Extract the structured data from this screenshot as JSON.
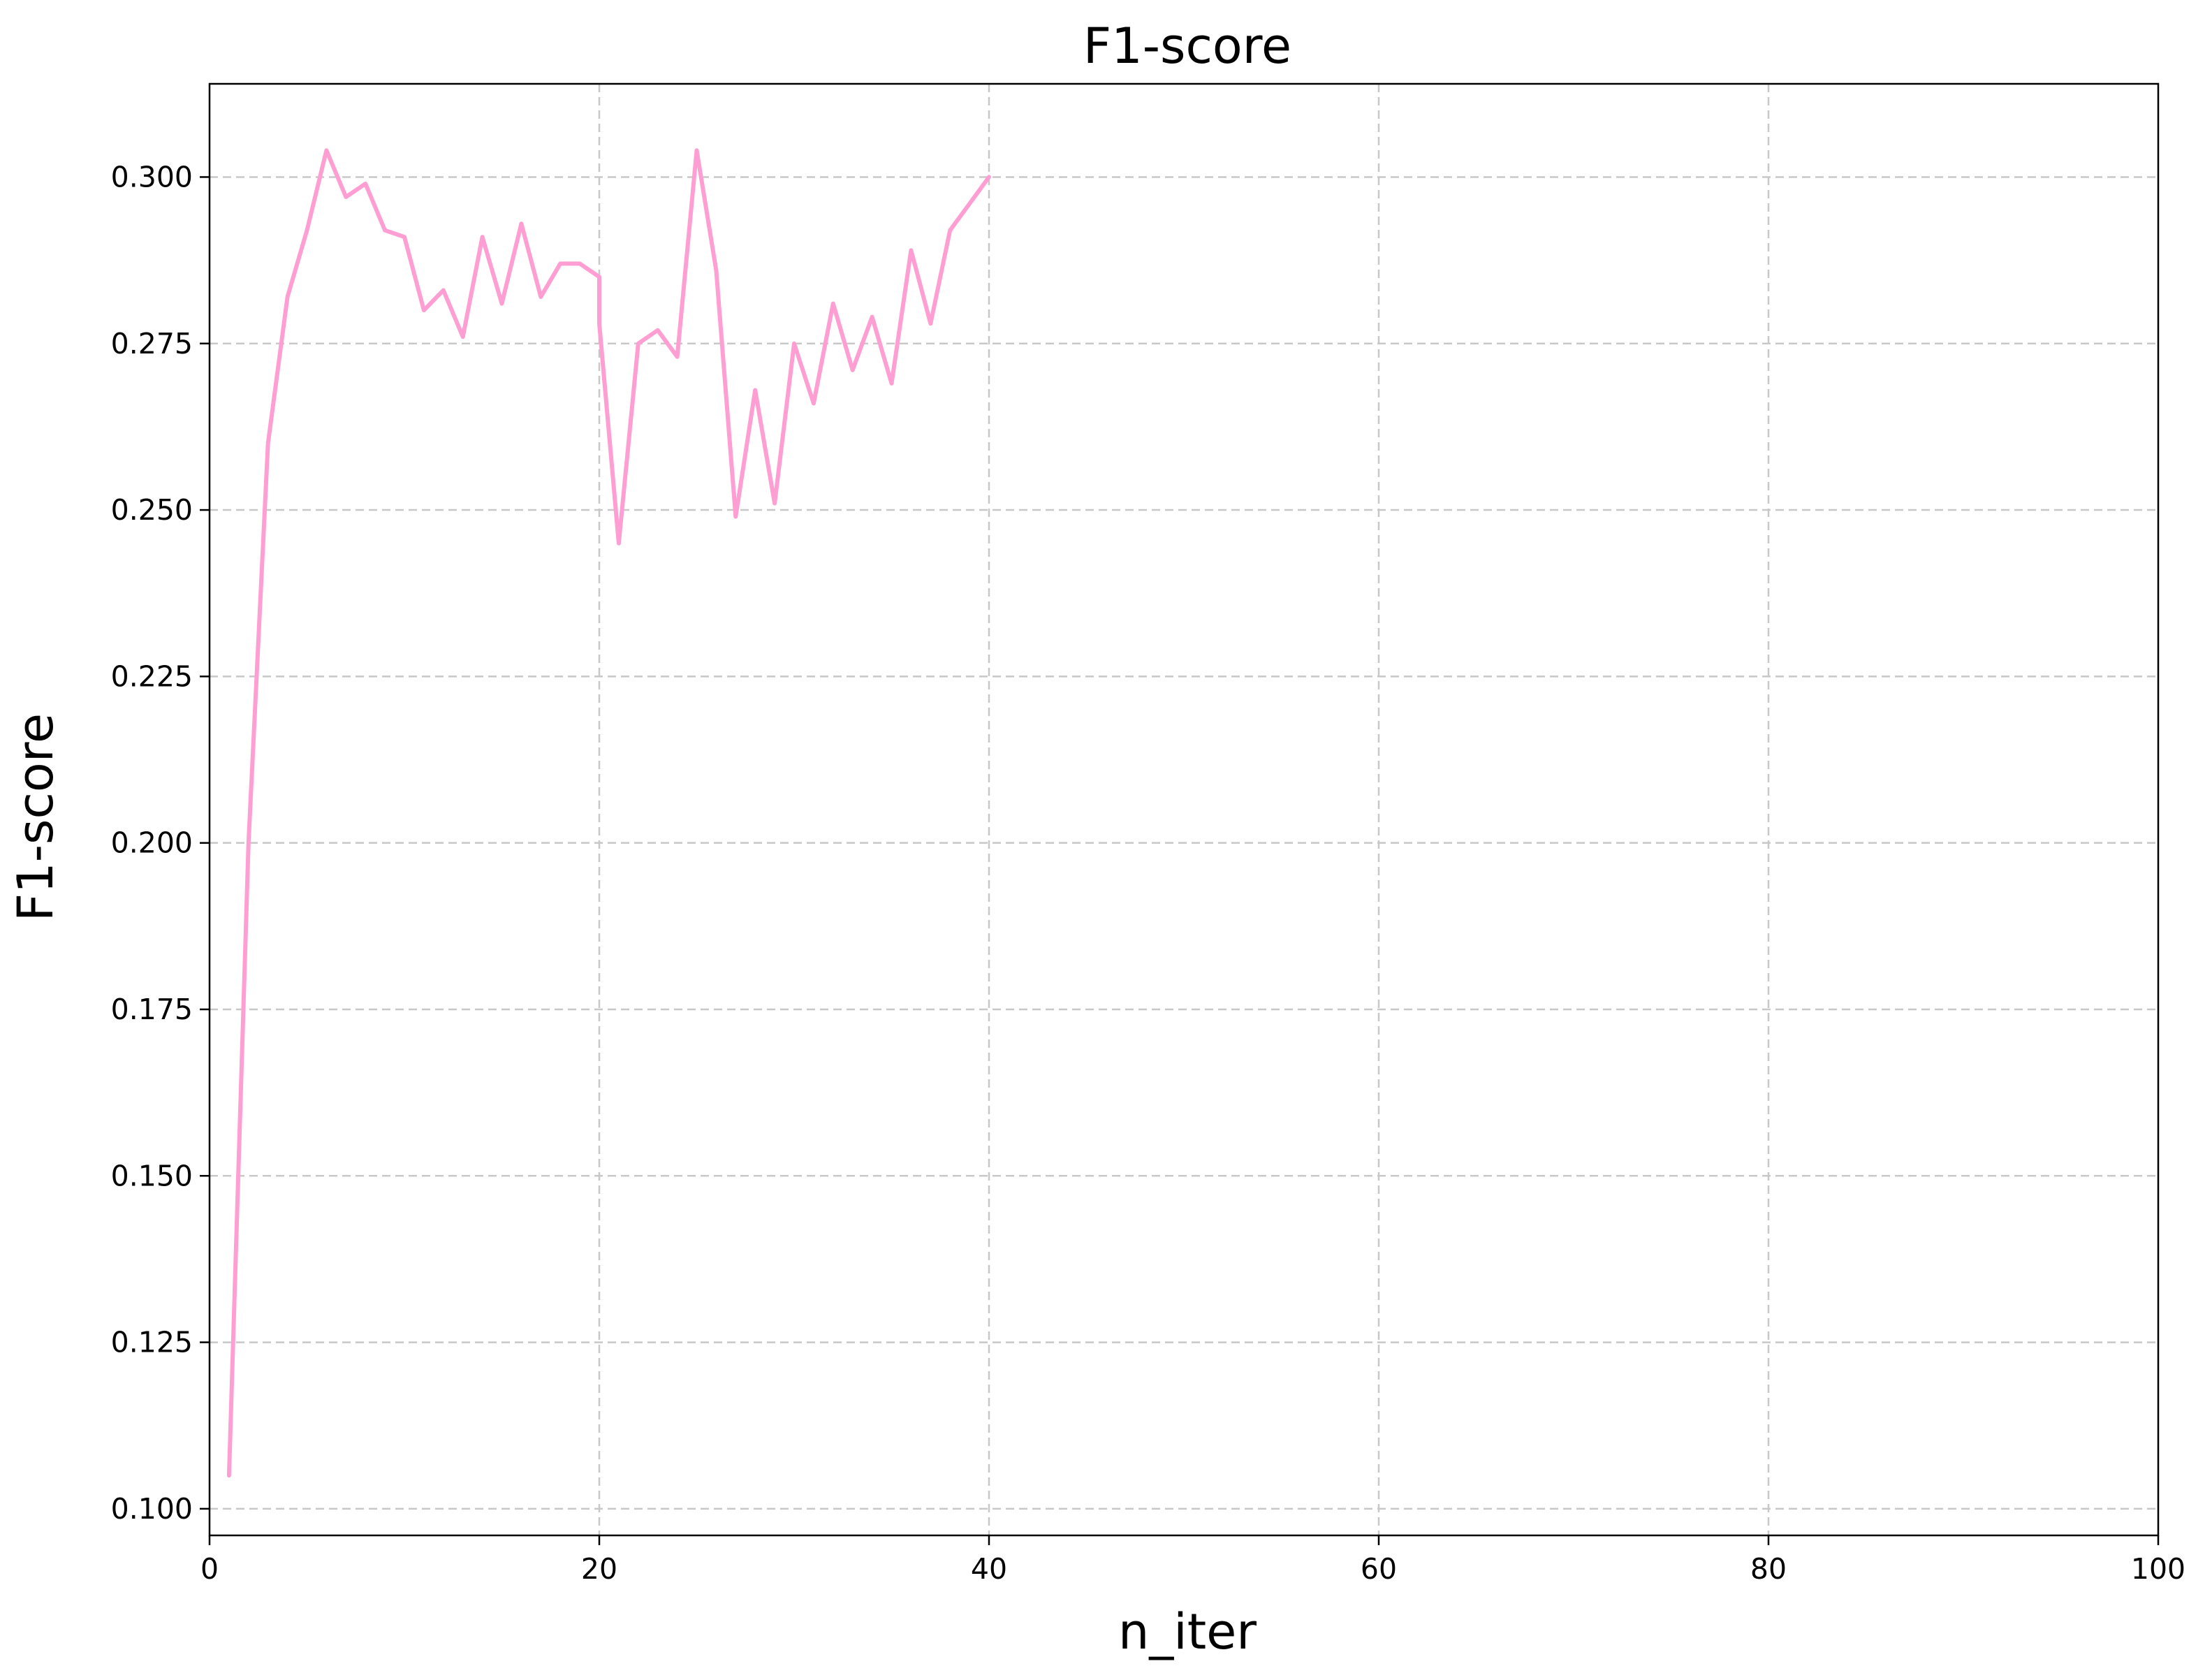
{
  "chart_data": {
    "type": "line",
    "title": "F1-score",
    "xlabel": "n_iter",
    "ylabel": "F1-score",
    "xlim": [
      0,
      100
    ],
    "ylim": [
      0.096,
      0.314
    ],
    "xticks": [
      0,
      20,
      40,
      60,
      80,
      100
    ],
    "yticks": [
      0.1,
      0.125,
      0.15,
      0.175,
      0.2,
      0.225,
      0.25,
      0.275,
      0.3
    ],
    "xtick_labels": [
      "0",
      "20",
      "40",
      "60",
      "80",
      "100"
    ],
    "ytick_labels": [
      "0.100",
      "0.125",
      "0.150",
      "0.175",
      "0.200",
      "0.225",
      "0.250",
      "0.275",
      "0.300"
    ],
    "grid": true,
    "series": [
      {
        "color": "#ff9ed2",
        "x": [
          1,
          2,
          3,
          4,
          5,
          6,
          7,
          8,
          9,
          10,
          11,
          12,
          13,
          14,
          15,
          16,
          17,
          18,
          19,
          20,
          20,
          21,
          22,
          23,
          24,
          25,
          26,
          27,
          28,
          29,
          30,
          31,
          32,
          33,
          34,
          35,
          36,
          37,
          38,
          39,
          40
        ],
        "y": [
          0.105,
          0.2,
          0.26,
          0.282,
          0.292,
          0.304,
          0.297,
          0.299,
          0.292,
          0.291,
          0.28,
          0.283,
          0.276,
          0.291,
          0.281,
          0.293,
          0.282,
          0.287,
          0.287,
          0.285,
          0.278,
          0.245,
          0.275,
          0.277,
          0.273,
          0.304,
          0.286,
          0.249,
          0.268,
          0.251,
          0.275,
          0.266,
          0.281,
          0.271,
          0.279,
          0.269,
          0.289,
          0.278,
          0.292,
          0.296,
          0.3
        ]
      }
    ]
  }
}
